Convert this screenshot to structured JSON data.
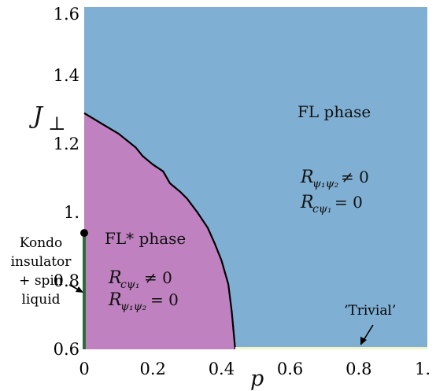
{
  "chart_data": {
    "type": "area",
    "title": "",
    "xlabel": "p",
    "ylabel": "J",
    "ylabel_sub": "⊥",
    "xlim": [
      0,
      1
    ],
    "ylim": [
      0.6,
      1.6
    ],
    "x_ticks": [
      {
        "v": 0,
        "label": "0"
      },
      {
        "v": 0.2,
        "label": "0.2"
      },
      {
        "v": 0.4,
        "label": "0.4"
      },
      {
        "v": 0.6,
        "label": "0.6"
      },
      {
        "v": 0.8,
        "label": "0.8"
      },
      {
        "v": 1.0,
        "label": "1."
      }
    ],
    "y_ticks": [
      {
        "v": 0.6,
        "label": "0.6"
      },
      {
        "v": 0.8,
        "label": "0.8"
      },
      {
        "v": 1.0,
        "label": "1."
      },
      {
        "v": 1.2,
        "label": "1.2"
      },
      {
        "v": 1.4,
        "label": "1.4"
      },
      {
        "v": 1.6,
        "label": "1.6"
      }
    ],
    "phase_boundary": {
      "x": [
        0,
        0.05,
        0.1,
        0.15,
        0.17,
        0.2,
        0.23,
        0.25,
        0.28,
        0.3,
        0.33,
        0.36,
        0.38,
        0.4,
        0.42,
        0.43,
        0.44
      ],
      "y": [
        1.29,
        1.26,
        1.23,
        1.19,
        1.165,
        1.14,
        1.12,
        1.085,
        1.06,
        1.04,
        1.0,
        0.955,
        0.91,
        0.86,
        0.79,
        0.71,
        0.6
      ]
    },
    "kondo_segment": {
      "x": 0,
      "y": [
        0.6,
        0.94
      ]
    },
    "kondo_point": {
      "x": 0,
      "y": 0.94
    },
    "trivial_segment": {
      "y": 0.6,
      "x": [
        0.44,
        1.0
      ]
    },
    "colors": {
      "fl": "#7fafd3",
      "flstar": "#bf81bf",
      "boundary": "#000000",
      "kondo": "#2f6b3a",
      "trivial": "#f1f4c8"
    }
  },
  "regions": {
    "fl": {
      "title": "FL phase",
      "line1_lhs": "R",
      "line1_sub": "ψ₁ψ₂",
      "line1_rhs": "≠ 0",
      "line2_lhs": "R",
      "line2_sub": "cψ₁",
      "line2_rhs": "= 0"
    },
    "flstar": {
      "title": "FL* phase",
      "line1_lhs": "R",
      "line1_sub": "cψ₁",
      "line1_rhs": "≠ 0",
      "line2_lhs": "R",
      "line2_sub": "ψ₁ψ₂",
      "line2_rhs": "= 0"
    }
  },
  "annotations": {
    "kondo_lines": [
      "Kondo",
      "insulator",
      "+ spin",
      "liquid"
    ],
    "trivial": "‘Trivial’"
  }
}
